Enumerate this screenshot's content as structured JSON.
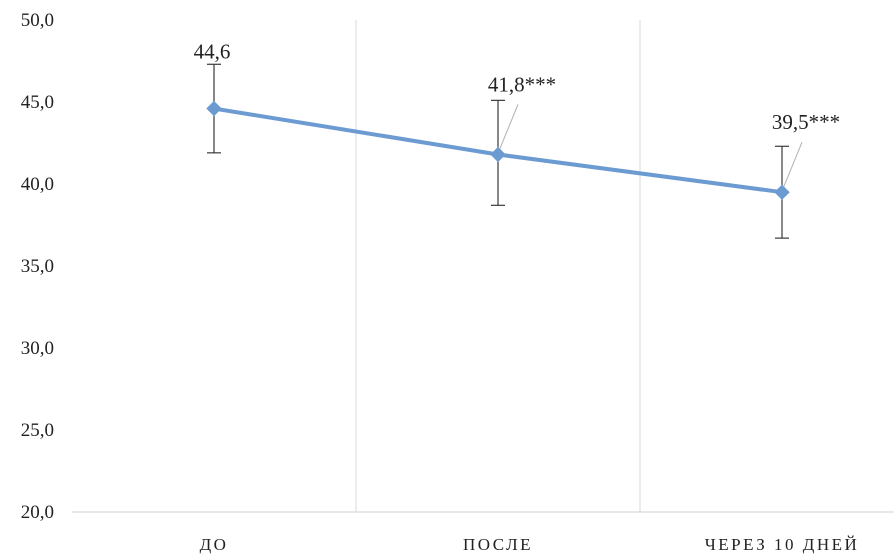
{
  "chart_data": {
    "type": "line",
    "categories": [
      "ДО",
      "ПОСЛЕ",
      "ЧЕРЕЗ 10 ДНЕЙ"
    ],
    "series": [
      {
        "values": [
          44.6,
          41.8,
          39.5
        ],
        "error_low": [
          41.9,
          38.7,
          36.7
        ],
        "error_high": [
          47.3,
          45.1,
          42.3
        ],
        "data_labels": [
          "44,6",
          "41,8***",
          "39,5***"
        ],
        "color": "#6c9bd2"
      }
    ],
    "ylim": [
      20,
      50
    ],
    "yticks": [
      "20,0",
      "25,0",
      "30,0",
      "35,0",
      "40,0",
      "45,0",
      "50,0"
    ],
    "grid": "vertical separators between categories",
    "title": "",
    "xlabel": "",
    "ylabel": ""
  }
}
